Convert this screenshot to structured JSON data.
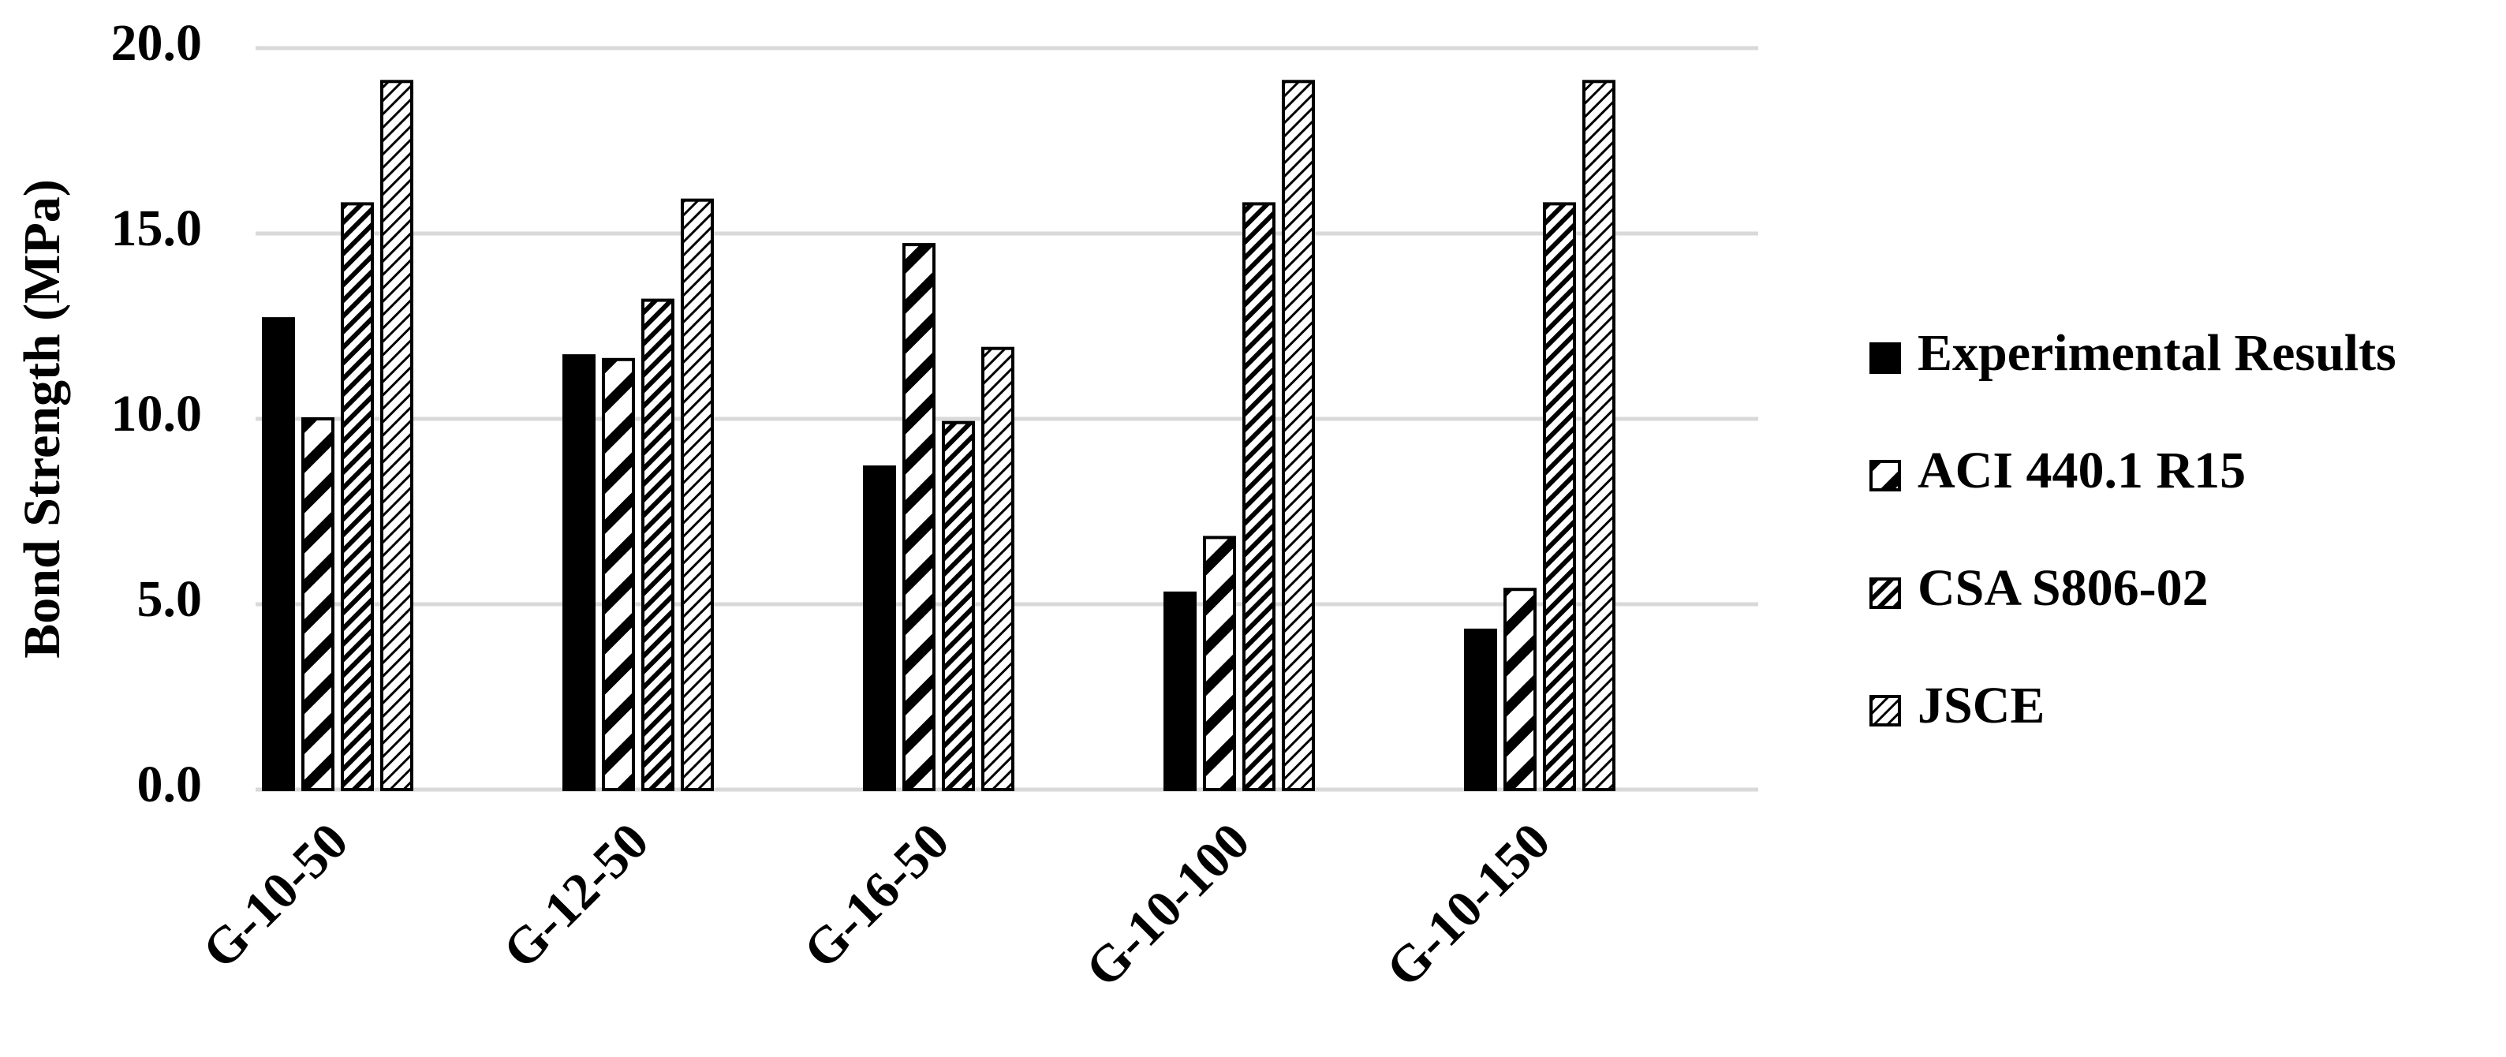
{
  "chart_data": {
    "type": "bar",
    "y_label": "Bond Strength (MPa)",
    "categories": [
      "G-10-50",
      "G-12-50",
      "G-16-50",
      "G-10-100",
      "G-10-150"
    ],
    "series": [
      {
        "name": "Experimental Results",
        "color": "#000000",
        "pattern": "solid",
        "values": [
          12.7,
          11.7,
          8.7,
          5.3,
          4.3
        ]
      },
      {
        "name": "ACI 440.1 R15",
        "color": "#000000",
        "pattern": "wide-hatch",
        "values": [
          10.0,
          11.6,
          14.7,
          6.8,
          5.4
        ]
      },
      {
        "name": "CSA S806-02",
        "color": "#000000",
        "pattern": "dense-hatch",
        "values": [
          15.8,
          13.2,
          9.9,
          15.8,
          15.8
        ]
      },
      {
        "name": "JSCE",
        "color": "#000000",
        "pattern": "fine-hatch",
        "values": [
          19.1,
          15.9,
          11.9,
          19.1,
          19.1
        ]
      }
    ],
    "ylim": [
      0,
      20
    ],
    "yticks": [
      {
        "value": 0,
        "label": "0.0"
      },
      {
        "value": 5,
        "label": "5.0"
      },
      {
        "value": 10,
        "label": "10.0"
      },
      {
        "value": 15,
        "label": "15.0"
      },
      {
        "value": 20,
        "label": "20.0"
      }
    ],
    "grid": true,
    "legend": "right"
  }
}
